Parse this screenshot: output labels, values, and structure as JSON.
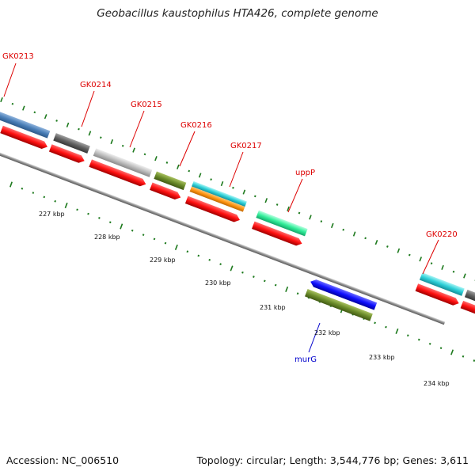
{
  "title": "Geobacillus kaustophilus HTA426, complete genome",
  "footer": {
    "accession": "Accession: NC_006510",
    "summary": "Topology: circular; Length: 3,544,776 bp; Genes: 3,611"
  },
  "colors": {
    "forward_cds": "#ff1a1a",
    "reverse_cds": "#1a1aff",
    "backbone": "#888888",
    "tick": "#1e7a1e",
    "label_forward": "#dd0000",
    "label_reverse": "#0000cc"
  },
  "gene_labels": [
    "GK0213",
    "GK0214",
    "GK0215",
    "GK0216",
    "GK0217",
    "uppP",
    "GK0220",
    "murG"
  ],
  "kbp_labels": [
    "227 kbp",
    "228 kbp",
    "229 kbp",
    "230 kbp",
    "231 kbp",
    "232 kbp",
    "233 kbp",
    "234 kbp"
  ]
}
